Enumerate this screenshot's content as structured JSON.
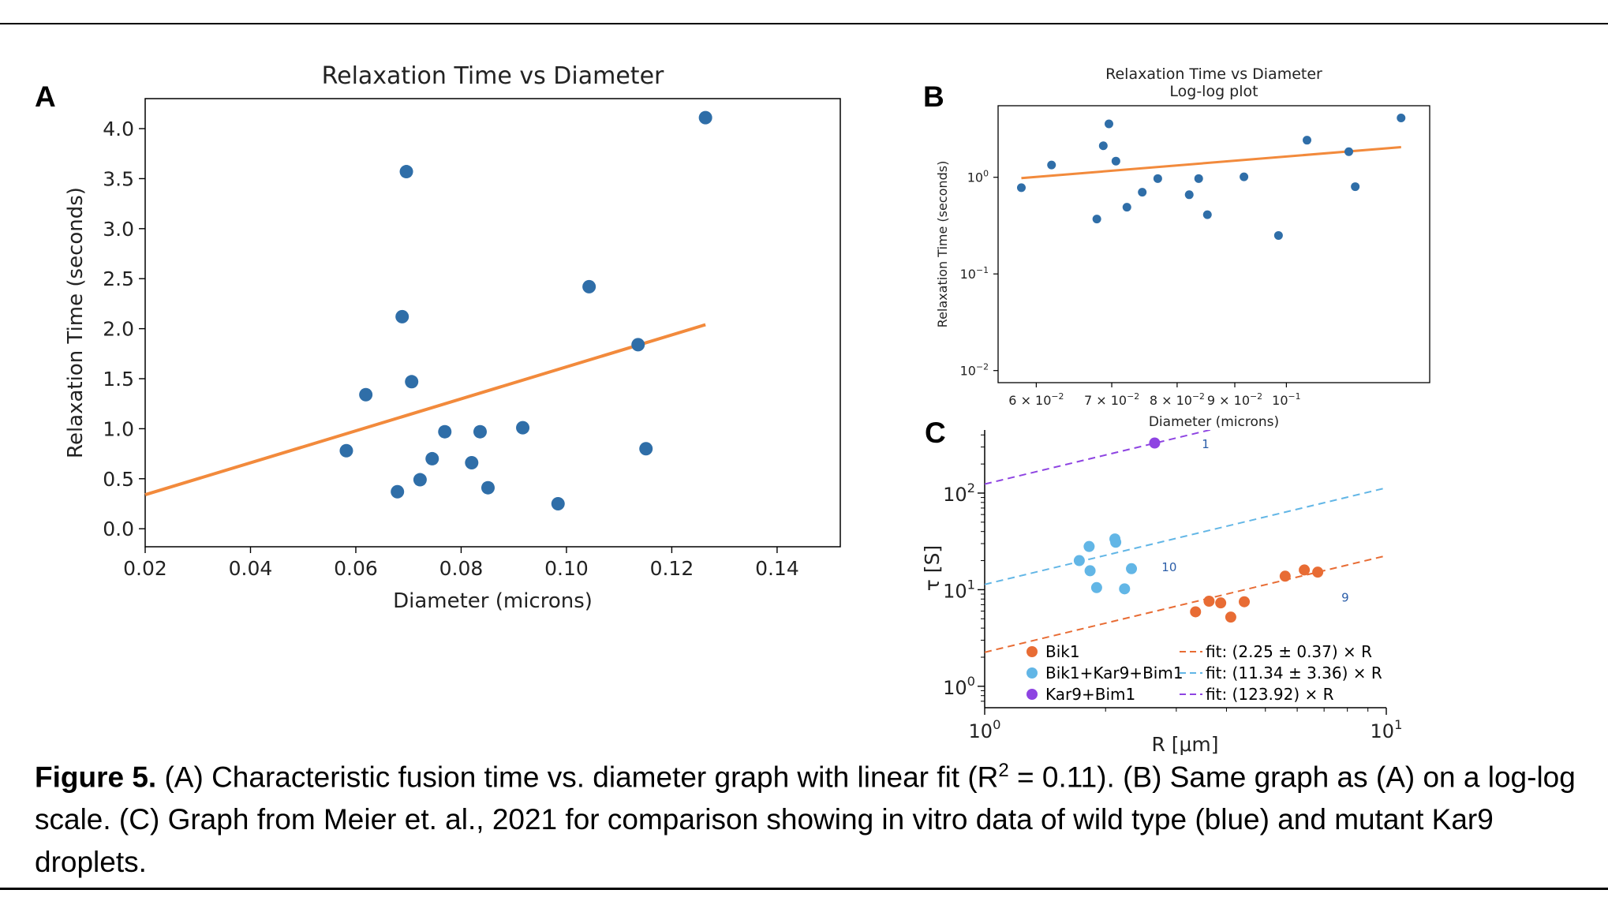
{
  "panel_labels": {
    "a": "A",
    "b": "B",
    "c": "C"
  },
  "caption": {
    "label": "Figure 5.",
    "part1": " (A) Characteristic fusion time vs. diameter graph with linear fit (R",
    "sup": "2",
    "part2": " = 0.11). (B) Same graph as (A) on a log-log scale. (C) Graph from Meier et. al., 2021 for comparison showing in vitro data of wild type (blue) and mutant Kar9 droplets."
  },
  "chart_data": [
    {
      "id": "A",
      "type": "scatter",
      "title": "Relaxation Time vs Diameter",
      "xlabel": "Diameter (microns)",
      "ylabel": "Relaxation Time (seconds)",
      "xlim": [
        0.02,
        0.152
      ],
      "ylim": [
        -0.18,
        4.3
      ],
      "xticks": [
        0.02,
        0.04,
        0.06,
        0.08,
        0.1,
        0.12,
        0.14
      ],
      "xtick_labels": [
        "0.02",
        "0.04",
        "0.06",
        "0.08",
        "0.10",
        "0.12",
        "0.14"
      ],
      "yticks": [
        0.0,
        0.5,
        1.0,
        1.5,
        2.0,
        2.5,
        3.0,
        3.5,
        4.0
      ],
      "ytick_labels": [
        "0.0",
        "0.5",
        "1.0",
        "1.5",
        "2.0",
        "2.5",
        "3.0",
        "3.5",
        "4.0"
      ],
      "points_color": "#2f6ea8",
      "fit_color": "#f28a3c",
      "points": [
        {
          "x": 0.0582,
          "y": 0.78
        },
        {
          "x": 0.0619,
          "y": 1.34
        },
        {
          "x": 0.0679,
          "y": 0.37
        },
        {
          "x": 0.0688,
          "y": 2.12
        },
        {
          "x": 0.0696,
          "y": 3.57
        },
        {
          "x": 0.0706,
          "y": 1.47
        },
        {
          "x": 0.0722,
          "y": 0.49
        },
        {
          "x": 0.0745,
          "y": 0.7
        },
        {
          "x": 0.0769,
          "y": 0.97
        },
        {
          "x": 0.082,
          "y": 0.66
        },
        {
          "x": 0.0836,
          "y": 0.97
        },
        {
          "x": 0.0851,
          "y": 0.41
        },
        {
          "x": 0.0917,
          "y": 1.01
        },
        {
          "x": 0.0984,
          "y": 0.25
        },
        {
          "x": 0.1043,
          "y": 2.42
        },
        {
          "x": 0.1136,
          "y": 1.84
        },
        {
          "x": 0.1151,
          "y": 0.8
        },
        {
          "x": 0.1264,
          "y": 4.11
        }
      ],
      "fit": [
        {
          "x": 0.02,
          "y": 0.34
        },
        {
          "x": 0.1264,
          "y": 2.04
        }
      ]
    },
    {
      "id": "B",
      "type": "scatter",
      "scale": "log-log",
      "title": "Relaxation Time vs Diameter",
      "subtitle": "Log-log plot",
      "xlabel": "Diameter (microns)",
      "ylabel": "Relaxation Time (seconds)",
      "xlim": [
        0.0555,
        0.134
      ],
      "ylim": [
        0.0075,
        5.5
      ],
      "xticks": [
        0.06,
        0.07,
        0.08,
        0.09,
        0.1
      ],
      "xtick_labels": [
        {
          "base": "6 × 10",
          "exp": "−2"
        },
        {
          "base": "7 × 10",
          "exp": "−2"
        },
        {
          "base": "8 × 10",
          "exp": "−2"
        },
        {
          "base": "9 × 10",
          "exp": "−2"
        },
        {
          "base": "10",
          "exp": "−1"
        }
      ],
      "yticks": [
        0.01,
        0.1,
        1
      ],
      "ytick_labels": [
        {
          "base": "10",
          "exp": "−2"
        },
        {
          "base": "10",
          "exp": "−1"
        },
        {
          "base": "10",
          "exp": "0"
        }
      ],
      "points_color": "#2f6ea8",
      "fit_color": "#f28a3c",
      "points": [
        {
          "x": 0.0582,
          "y": 0.78
        },
        {
          "x": 0.0619,
          "y": 1.34
        },
        {
          "x": 0.0679,
          "y": 0.37
        },
        {
          "x": 0.0688,
          "y": 2.12
        },
        {
          "x": 0.0696,
          "y": 3.57
        },
        {
          "x": 0.0706,
          "y": 1.47
        },
        {
          "x": 0.0722,
          "y": 0.49
        },
        {
          "x": 0.0745,
          "y": 0.7
        },
        {
          "x": 0.0769,
          "y": 0.97
        },
        {
          "x": 0.082,
          "y": 0.66
        },
        {
          "x": 0.0836,
          "y": 0.97
        },
        {
          "x": 0.0851,
          "y": 0.41
        },
        {
          "x": 0.0917,
          "y": 1.01
        },
        {
          "x": 0.0984,
          "y": 0.25
        },
        {
          "x": 0.1043,
          "y": 2.42
        },
        {
          "x": 0.1136,
          "y": 1.84
        },
        {
          "x": 0.1151,
          "y": 0.8
        },
        {
          "x": 0.1264,
          "y": 4.11
        }
      ],
      "fit": [
        {
          "x": 0.0582,
          "y": 0.98
        },
        {
          "x": 0.1264,
          "y": 2.05
        }
      ]
    },
    {
      "id": "C",
      "type": "scatter",
      "scale": "log-log",
      "xlabel": "R [μm]",
      "ylabel": "τ [S]",
      "xlim": [
        1,
        10
      ],
      "ylim": [
        0.6,
        450
      ],
      "xtick_labels": [
        {
          "base": "10",
          "exp": "0",
          "x": 1
        },
        {
          "base": "10",
          "exp": "1",
          "x": 10
        }
      ],
      "ytick_labels": [
        {
          "base": "10",
          "exp": "0",
          "y": 1
        },
        {
          "base": "10",
          "exp": "1",
          "y": 10
        },
        {
          "base": "10",
          "exp": "2",
          "y": 100
        }
      ],
      "series": [
        {
          "name": "Bik1",
          "color": "#e86c34",
          "fit_label": "fit: (2.25 ± 0.37) × R",
          "points": [
            {
              "x": 3.35,
              "y": 5.9
            },
            {
              "x": 3.62,
              "y": 7.6
            },
            {
              "x": 3.87,
              "y": 7.3
            },
            {
              "x": 4.1,
              "y": 5.2
            },
            {
              "x": 4.43,
              "y": 7.5
            },
            {
              "x": 5.6,
              "y": 13.8
            },
            {
              "x": 6.25,
              "y": 16.0
            },
            {
              "x": 6.75,
              "y": 15.2
            }
          ],
          "fit": [
            {
              "x": 1,
              "y": 2.25
            },
            {
              "x": 10,
              "y": 22.5
            }
          ],
          "annotation": {
            "text": "9",
            "x": 7.9,
            "y": 8.3
          }
        },
        {
          "name": "Bik1+Kar9+Bim1",
          "color": "#62b6e6",
          "fit_label": "fit: (11.34 ± 3.36) × R",
          "points": [
            {
              "x": 1.72,
              "y": 20.0
            },
            {
              "x": 1.82,
              "y": 28.0
            },
            {
              "x": 1.83,
              "y": 15.7
            },
            {
              "x": 1.9,
              "y": 10.5
            },
            {
              "x": 2.11,
              "y": 33.5
            },
            {
              "x": 2.12,
              "y": 31.0
            },
            {
              "x": 2.23,
              "y": 10.2
            },
            {
              "x": 2.32,
              "y": 16.5
            }
          ],
          "fit": [
            {
              "x": 1,
              "y": 11.34
            },
            {
              "x": 10,
              "y": 113.4
            }
          ],
          "annotation": {
            "text": "10",
            "x": 2.88,
            "y": 17.0
          }
        },
        {
          "name": "Kar9+Bim1",
          "color": "#8e44e2",
          "fit_label": "fit: (123.92) × R",
          "points": [
            {
              "x": 2.65,
              "y": 330
            }
          ],
          "fit": [
            {
              "x": 1,
              "y": 123.92
            },
            {
              "x": 10,
              "y": 1239.2
            }
          ],
          "annotation": {
            "text": "1",
            "x": 3.55,
            "y": 320
          }
        }
      ],
      "legend_position": "bottom"
    }
  ]
}
